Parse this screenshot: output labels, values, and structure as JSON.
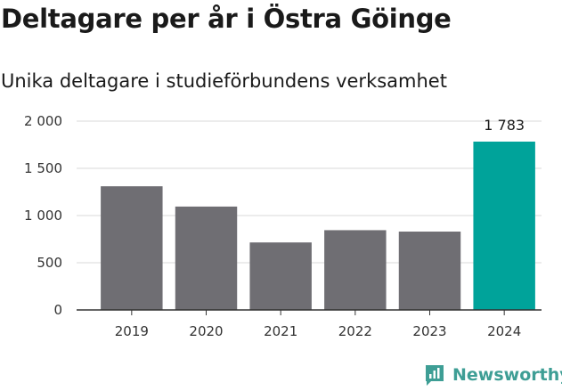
{
  "header": {
    "title": "Deltagare per år i Östra Göinge",
    "subtitle": "Unika deltagare i studieförbundens verksamhet"
  },
  "brand": {
    "name": "Newsworthy",
    "logo_icon": "bar-chart-logo-icon",
    "color": "#3e9e95"
  },
  "chart_data": {
    "type": "bar",
    "title": "Deltagare per år i Östra Göinge",
    "subtitle": "Unika deltagare i studieförbundens verksamhet",
    "categories": [
      "2019",
      "2020",
      "2021",
      "2022",
      "2023",
      "2024"
    ],
    "values": [
      1310,
      1095,
      715,
      845,
      830,
      1783
    ],
    "ylim": [
      0,
      2000
    ],
    "yticks": [
      0,
      500,
      1000,
      1500,
      2000
    ],
    "ytick_labels": [
      "0",
      "500",
      "1 000",
      "1 500",
      "2 000"
    ],
    "grid": true,
    "colors": {
      "default": "#6f6e73",
      "highlight": "#00a39a"
    },
    "highlight_index": 5,
    "data_labels": [
      {
        "index": 5,
        "text": "1 783"
      }
    ]
  }
}
